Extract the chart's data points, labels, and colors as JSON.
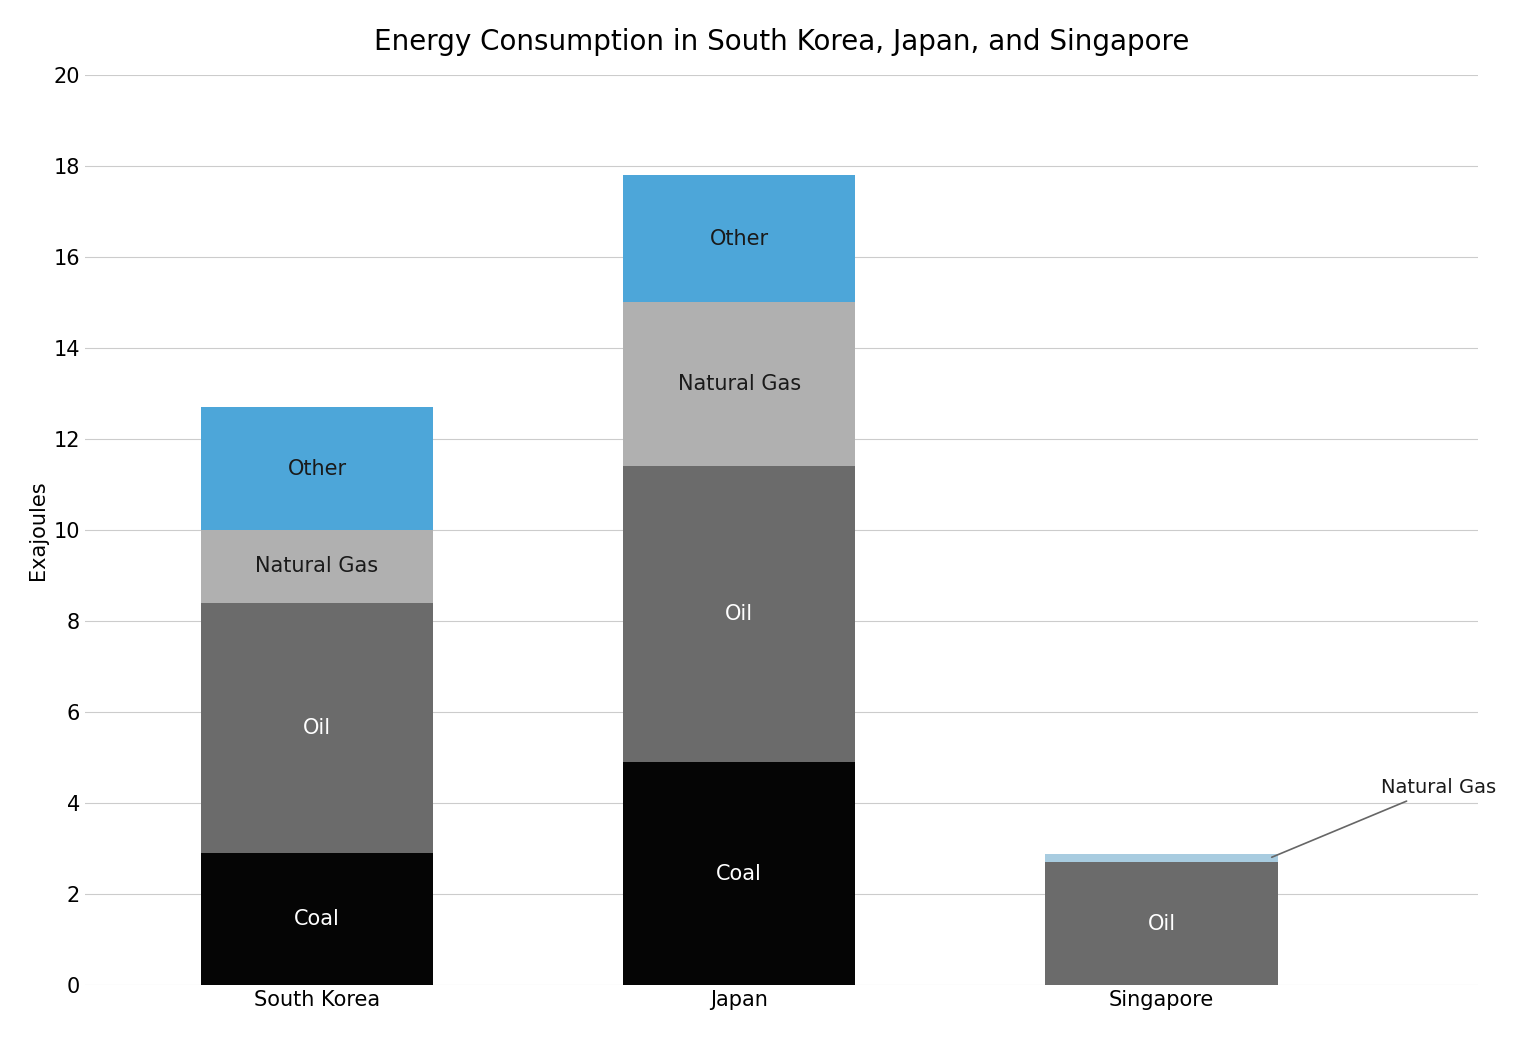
{
  "title": "Energy Consumption in South Korea, Japan, and Singapore",
  "ylabel": "Exajoules",
  "countries": [
    "South Korea",
    "Japan",
    "Singapore"
  ],
  "ylim": [
    0,
    20
  ],
  "yticks": [
    0,
    2,
    4,
    6,
    8,
    10,
    12,
    14,
    16,
    18,
    20
  ],
  "segments": {
    "Coal": {
      "values": [
        2.9,
        4.9,
        0.0
      ],
      "color": "#050505"
    },
    "Oil": {
      "values": [
        5.5,
        6.5,
        2.7
      ],
      "color": "#6b6b6b"
    },
    "Natural Gas": {
      "values": [
        1.6,
        3.6,
        0.18
      ],
      "color": "#b0b0b0"
    },
    "Other": {
      "values": [
        2.7,
        2.8,
        0.0
      ],
      "color": "#4da6d9"
    }
  },
  "singapore_ng_color": "#a8cce0",
  "bar_width": 0.55,
  "x_positions": [
    0.0,
    1.0,
    2.0
  ],
  "xlim_left": -0.55,
  "xlim_right": 2.75,
  "background_color": "#ffffff",
  "grid_color": "#cccccc",
  "title_fontsize": 20,
  "label_fontsize": 15,
  "tick_fontsize": 15,
  "annotation_fontsize": 14,
  "annotation_text": "Natural Gas",
  "text_label_fontsize": 15
}
